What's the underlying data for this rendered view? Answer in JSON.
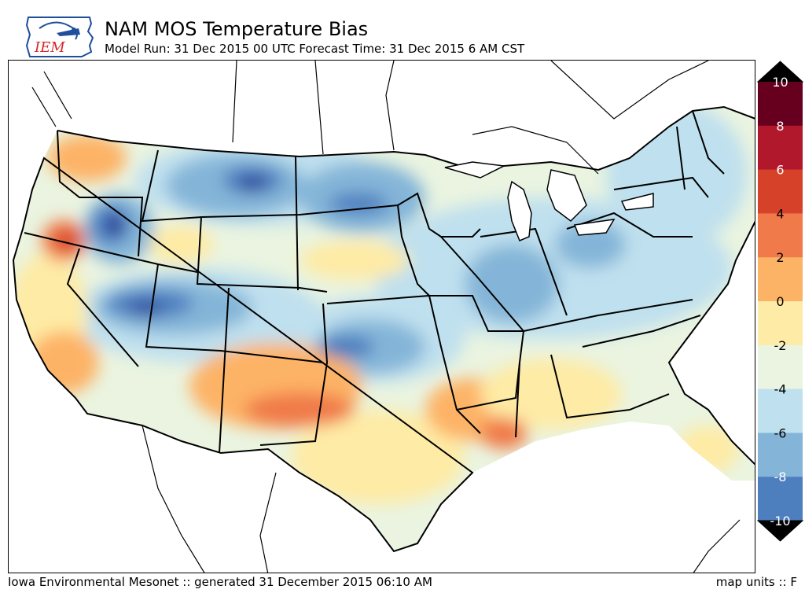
{
  "header": {
    "logo_text": "IEM",
    "title": "NAM MOS Temperature Bias",
    "subtitle": "Model Run: 31 Dec 2015 00 UTC Forecast Time: 31 Dec 2015 6 AM CST"
  },
  "footer": {
    "left": "Iowa Environmental Mesonet :: generated 31 December 2015 06:10 AM",
    "right": "map units :: F"
  },
  "colorbar": {
    "ticks": [
      "10",
      "8",
      "6",
      "4",
      "2",
      "0",
      "-2",
      "-4",
      "-6",
      "-8",
      "-10"
    ],
    "bins": [
      "#67001f",
      "#b2182b",
      "#d6412a",
      "#f07a4a",
      "#fdb366",
      "#feeba5",
      "#eaf4e0",
      "#bfe0ee",
      "#84b5d8",
      "#4d7fbf",
      "#2d3f96",
      "#000000"
    ]
  }
}
